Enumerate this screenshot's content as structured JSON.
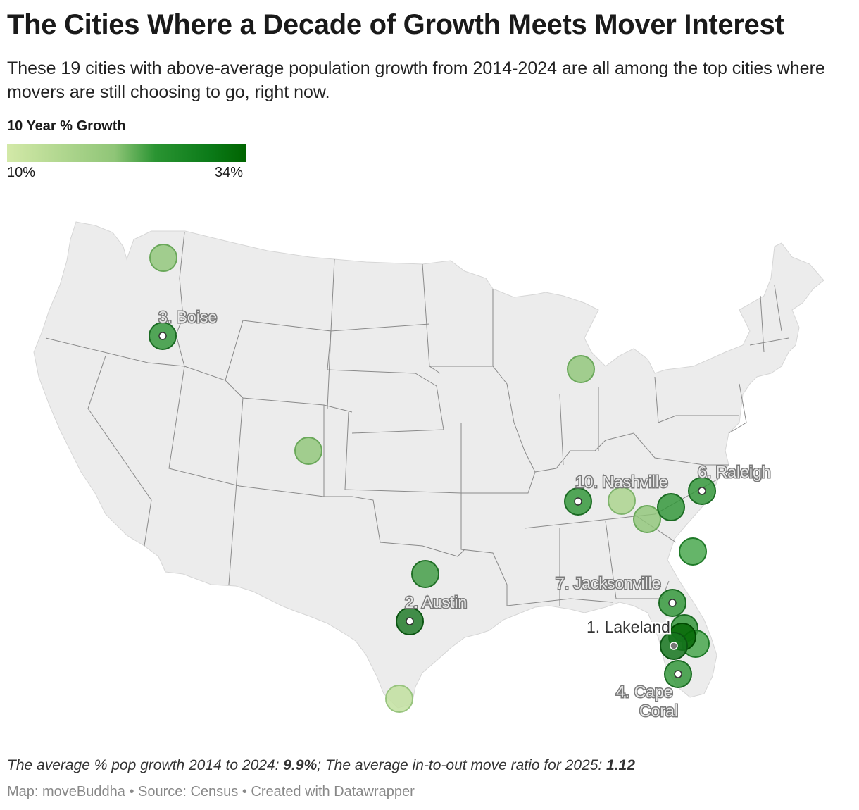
{
  "title": "The Cities Where a Decade of Growth Meets Mover Interest",
  "subtitle": "These 19 cities with above-average population growth from 2014-2024 are all among the top cities where movers are still choosing to go, right now.",
  "legend": {
    "title": "10 Year % Growth",
    "min_label": "10%",
    "max_label": "34%",
    "colors": [
      "#d3e9a8",
      "#8fc577",
      "#2a9432",
      "#006400"
    ]
  },
  "city_labels": {
    "boise": "3. Boise",
    "austin": "2. Austin",
    "nashville": "10. Nashville",
    "raleigh": "6. Raleigh",
    "jacksonville": "7. Jacksonville",
    "lakeland": "1. Lakeland",
    "cape_coral_line1": "4. Cape",
    "cape_coral_line2": "Coral"
  },
  "note": {
    "prefix": "The average % pop growth 2014 to 2024: ",
    "growth_value": "9.9%",
    "middle": "; The average in-to-out move ratio for 2025: ",
    "ratio_value": "1.12"
  },
  "footer": "Map: moveBuddha • Source: Census • Created with Datawrapper"
}
